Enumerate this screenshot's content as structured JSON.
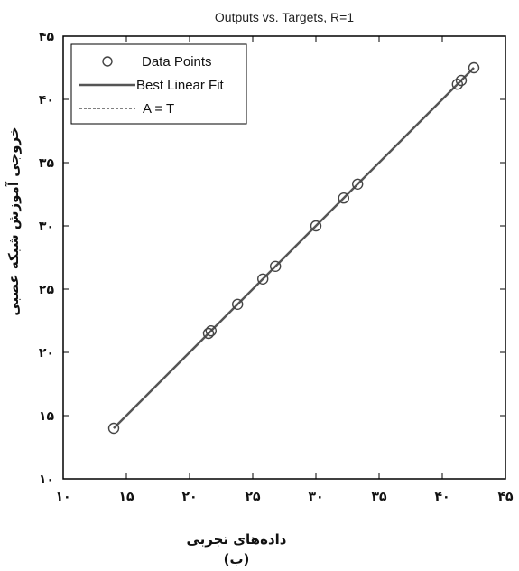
{
  "chart_data": {
    "type": "scatter",
    "title": "Outputs vs. Targets, R=1",
    "xlabel": "داده‌های تجربی",
    "ylabel": "خروجی آموزش شبکه عصبی",
    "sublabel": "(ب)",
    "xlim": [
      10,
      45
    ],
    "ylim": [
      10,
      45
    ],
    "xticks": [
      10,
      15,
      20,
      25,
      30,
      35,
      40,
      45
    ],
    "yticks": [
      10,
      15,
      20,
      25,
      30,
      35,
      40,
      45
    ],
    "xtick_labels": [
      "۱۰",
      "۱۵",
      "۲۰",
      "۲۵",
      "۳۰",
      "۳۵",
      "۴۰",
      "۴۵"
    ],
    "ytick_labels": [
      "۱۰",
      "۱۵",
      "۲۰",
      "۲۵",
      "۳۰",
      "۳۵",
      "۴۰",
      "۴۵"
    ],
    "legend": {
      "placement": "top-left",
      "items": [
        "Data Points",
        "Best Linear Fit",
        "A = T"
      ]
    },
    "points": {
      "x": [
        14.0,
        21.5,
        21.7,
        23.8,
        25.8,
        26.8,
        30.0,
        32.2,
        33.3,
        41.2,
        41.5,
        42.5
      ],
      "y": [
        14.0,
        21.5,
        21.7,
        23.8,
        25.8,
        26.8,
        30.0,
        32.2,
        33.3,
        41.2,
        41.5,
        42.5
      ]
    },
    "fit_line": {
      "x": [
        14.0,
        42.5
      ],
      "y": [
        14.0,
        42.5
      ]
    },
    "identity_line": {
      "x": [
        14.0,
        42.5
      ],
      "y": [
        14.0,
        42.5
      ]
    },
    "colors": {
      "fit": "#555555",
      "points": "#444444",
      "axis": "#000000"
    }
  }
}
